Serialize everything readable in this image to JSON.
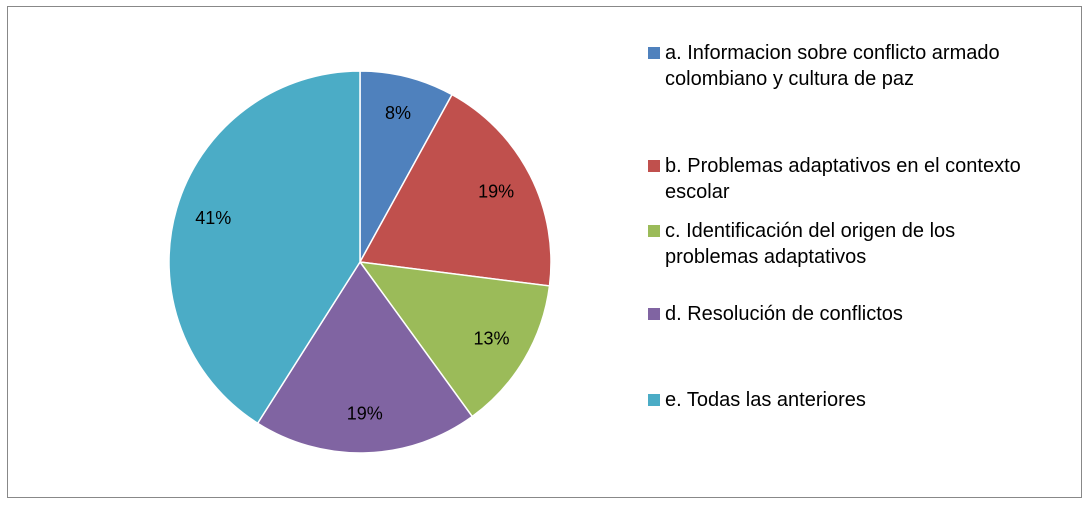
{
  "chart_data": {
    "type": "pie",
    "categories": [
      "a. Informacion sobre conflicto armado colombiano y cultura de paz",
      "b. Problemas adaptativos en el contexto escolar",
      "c. Identificación del origen de los problemas adaptativos",
      "d. Resolución de conflictos",
      "e. Todas las anteriores"
    ],
    "values": [
      8,
      19,
      13,
      19,
      41
    ],
    "value_labels": [
      "8%",
      "19%",
      "13%",
      "19%",
      "41%"
    ],
    "colors": [
      "#4f81bd",
      "#c0504d",
      "#9bbb59",
      "#8064a2",
      "#4bacc6"
    ],
    "legend": "right"
  }
}
